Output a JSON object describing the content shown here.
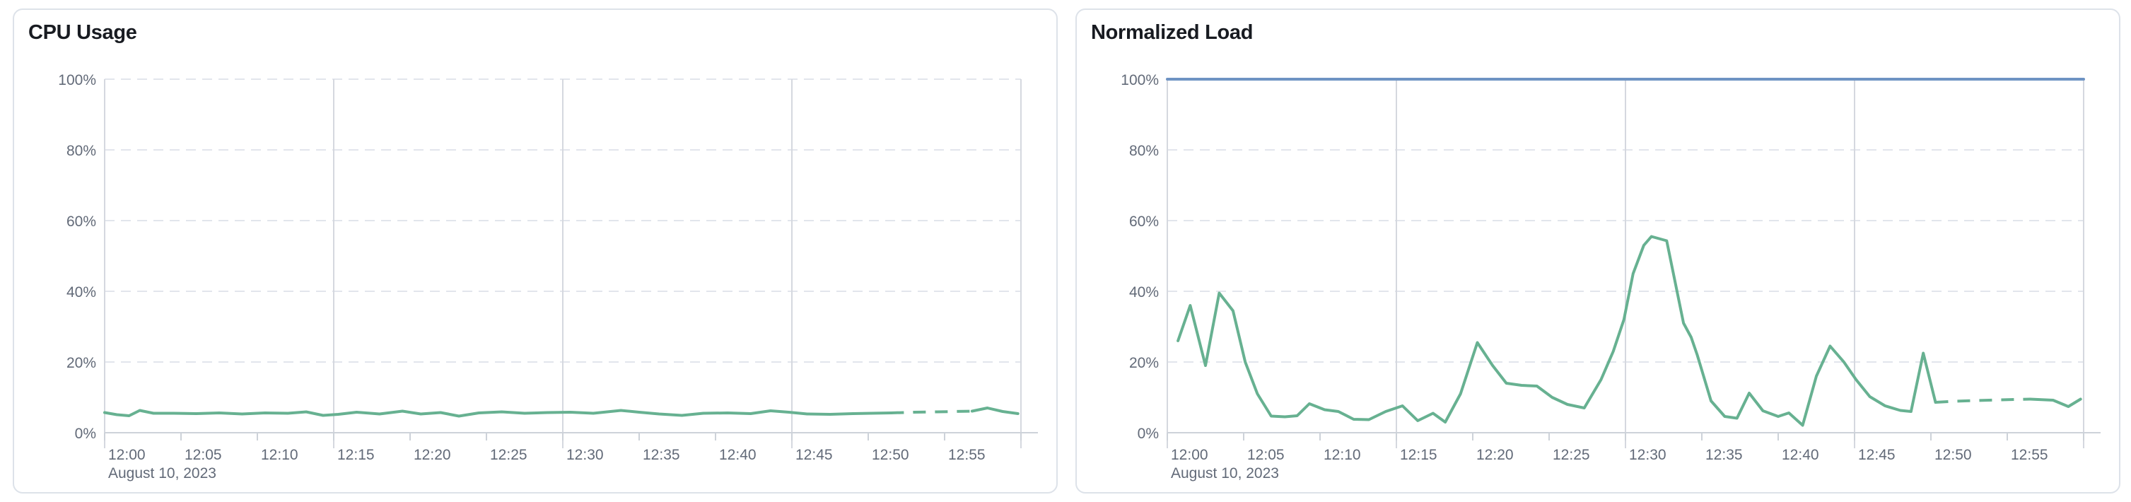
{
  "panels": [
    {
      "title": "CPU Usage",
      "chart_data": {
        "type": "line",
        "title": "CPU Usage",
        "x_axis": {
          "date": "August 10, 2023",
          "start": "12:00",
          "end": "13:00",
          "tick_interval_min": 5,
          "tick_labels": [
            "12:00",
            "12:05",
            "12:10",
            "12:15",
            "12:20",
            "12:25",
            "12:30",
            "12:35",
            "12:40",
            "12:45",
            "12:50",
            "12:55"
          ],
          "major_gridline_minutes": [
            0,
            15,
            30,
            45,
            60
          ]
        },
        "y_axis": {
          "unit": "%",
          "min": 0,
          "max": 100,
          "ticks": [
            0,
            20,
            40,
            60,
            80,
            100
          ],
          "tick_labels": [
            "0%",
            "20%",
            "40%",
            "60%",
            "80%",
            "100%"
          ]
        },
        "legend": "none",
        "series": [
          {
            "name": "cpu-usage",
            "color": "#67b191",
            "unit": "%",
            "segments": [
              {
                "style": "solid",
                "points": [
                  [
                    0,
                    5.7
                  ],
                  [
                    0.8,
                    5.1
                  ],
                  [
                    1.6,
                    4.8
                  ],
                  [
                    2.3,
                    6.3
                  ],
                  [
                    3.2,
                    5.5
                  ],
                  [
                    4.5,
                    5.5
                  ],
                  [
                    6,
                    5.4
                  ],
                  [
                    7.5,
                    5.6
                  ],
                  [
                    9,
                    5.3
                  ],
                  [
                    10.5,
                    5.6
                  ],
                  [
                    12,
                    5.5
                  ],
                  [
                    13.2,
                    5.9
                  ],
                  [
                    14.3,
                    4.9
                  ],
                  [
                    15.3,
                    5.2
                  ],
                  [
                    16.5,
                    5.8
                  ],
                  [
                    18,
                    5.3
                  ],
                  [
                    19.5,
                    6.1
                  ],
                  [
                    20.7,
                    5.3
                  ],
                  [
                    22,
                    5.7
                  ],
                  [
                    23.2,
                    4.7
                  ],
                  [
                    24.5,
                    5.6
                  ],
                  [
                    26,
                    5.9
                  ],
                  [
                    27.5,
                    5.5
                  ],
                  [
                    29,
                    5.7
                  ],
                  [
                    30.5,
                    5.8
                  ],
                  [
                    32,
                    5.5
                  ],
                  [
                    33.8,
                    6.3
                  ],
                  [
                    35,
                    5.8
                  ],
                  [
                    36.3,
                    5.3
                  ],
                  [
                    37.8,
                    4.9
                  ],
                  [
                    39.2,
                    5.5
                  ],
                  [
                    40.8,
                    5.6
                  ],
                  [
                    42.3,
                    5.4
                  ],
                  [
                    43.6,
                    6.2
                  ],
                  [
                    44.8,
                    5.8
                  ],
                  [
                    46,
                    5.3
                  ],
                  [
                    47.5,
                    5.2
                  ],
                  [
                    49,
                    5.4
                  ],
                  [
                    50.2,
                    5.5
                  ],
                  [
                    51.5,
                    5.6
                  ]
                ]
              },
              {
                "style": "dashed",
                "points": [
                  [
                    51.5,
                    5.6
                  ],
                  [
                    53,
                    5.8
                  ],
                  [
                    54.5,
                    5.9
                  ],
                  [
                    56.8,
                    6.1
                  ]
                ]
              },
              {
                "style": "solid",
                "points": [
                  [
                    56.8,
                    6.1
                  ],
                  [
                    57.8,
                    7.0
                  ],
                  [
                    58.8,
                    6.0
                  ],
                  [
                    59.8,
                    5.4
                  ]
                ]
              }
            ]
          }
        ]
      }
    },
    {
      "title": "Normalized Load",
      "chart_data": {
        "type": "line",
        "title": "Normalized Load",
        "x_axis": {
          "date": "August 10, 2023",
          "start": "12:00",
          "end": "13:00",
          "tick_interval_min": 5,
          "tick_labels": [
            "12:00",
            "12:05",
            "12:10",
            "12:15",
            "12:20",
            "12:25",
            "12:30",
            "12:35",
            "12:40",
            "12:45",
            "12:50",
            "12:55"
          ],
          "major_gridline_minutes": [
            0,
            15,
            30,
            45,
            60
          ]
        },
        "y_axis": {
          "unit": "%",
          "min": 0,
          "max": 100,
          "ticks": [
            0,
            20,
            40,
            60,
            80,
            100
          ],
          "tick_labels": [
            "0%",
            "20%",
            "40%",
            "60%",
            "80%",
            "100%"
          ]
        },
        "legend": "none",
        "series": [
          {
            "name": "load-limit",
            "color": "#6e93c3",
            "unit": "%",
            "segments": [
              {
                "style": "solid",
                "points": [
                  [
                    0,
                    100
                  ],
                  [
                    60,
                    100
                  ]
                ]
              }
            ]
          },
          {
            "name": "normalized-load",
            "color": "#67b191",
            "unit": "%",
            "segments": [
              {
                "style": "solid",
                "points": [
                  [
                    0.7,
                    26
                  ],
                  [
                    1.5,
                    36
                  ],
                  [
                    2.5,
                    19
                  ],
                  [
                    3.4,
                    39.5
                  ],
                  [
                    4.3,
                    34.5
                  ],
                  [
                    5.1,
                    20
                  ],
                  [
                    5.9,
                    11
                  ],
                  [
                    6.8,
                    4.7
                  ],
                  [
                    7.7,
                    4.5
                  ],
                  [
                    8.5,
                    4.8
                  ],
                  [
                    9.3,
                    8.2
                  ],
                  [
                    10.3,
                    6.5
                  ],
                  [
                    11.2,
                    6
                  ],
                  [
                    12.2,
                    3.8
                  ],
                  [
                    13.2,
                    3.7
                  ],
                  [
                    14.3,
                    6
                  ],
                  [
                    15.4,
                    7.6
                  ],
                  [
                    16.4,
                    3.4
                  ],
                  [
                    17.4,
                    5.5
                  ],
                  [
                    18.2,
                    3
                  ],
                  [
                    19.2,
                    11
                  ],
                  [
                    20.3,
                    25.5
                  ],
                  [
                    21.3,
                    19
                  ],
                  [
                    22.2,
                    14
                  ],
                  [
                    23.2,
                    13.4
                  ],
                  [
                    24.2,
                    13.2
                  ],
                  [
                    25.2,
                    10
                  ],
                  [
                    26.2,
                    8
                  ],
                  [
                    27.3,
                    7
                  ],
                  [
                    28.4,
                    15
                  ],
                  [
                    29.2,
                    23
                  ],
                  [
                    29.9,
                    32
                  ],
                  [
                    30.5,
                    45
                  ],
                  [
                    31.2,
                    53
                  ],
                  [
                    31.7,
                    55.5
                  ],
                  [
                    32.7,
                    54.3
                  ],
                  [
                    33.8,
                    31
                  ],
                  [
                    34.3,
                    27
                  ],
                  [
                    34.7,
                    22
                  ],
                  [
                    35.6,
                    9
                  ],
                  [
                    36.5,
                    4.6
                  ],
                  [
                    37.3,
                    4.1
                  ],
                  [
                    38.1,
                    11.2
                  ],
                  [
                    39,
                    6.2
                  ],
                  [
                    40,
                    4.6
                  ],
                  [
                    40.7,
                    5.6
                  ],
                  [
                    41.6,
                    2.1
                  ],
                  [
                    42.5,
                    16
                  ],
                  [
                    43.4,
                    24.5
                  ],
                  [
                    44.3,
                    20
                  ],
                  [
                    45.1,
                    15
                  ],
                  [
                    46,
                    10.2
                  ],
                  [
                    47,
                    7.6
                  ],
                  [
                    48,
                    6.3
                  ],
                  [
                    48.7,
                    6
                  ],
                  [
                    49.5,
                    22.5
                  ],
                  [
                    50.3,
                    8.6
                  ]
                ]
              },
              {
                "style": "dashed",
                "points": [
                  [
                    50.3,
                    8.6
                  ],
                  [
                    51.5,
                    8.9
                  ],
                  [
                    53,
                    9.1
                  ],
                  [
                    54.5,
                    9.3
                  ],
                  [
                    56.5,
                    9.5
                  ]
                ]
              },
              {
                "style": "solid",
                "points": [
                  [
                    56.5,
                    9.5
                  ],
                  [
                    58,
                    9.2
                  ],
                  [
                    59,
                    7.4
                  ],
                  [
                    59.8,
                    9.5
                  ]
                ]
              }
            ]
          }
        ]
      }
    }
  ],
  "style": {
    "grid_dash_color": "#e2e5ec",
    "grid_major_vline_color": "#d5d8df",
    "axis_line_color": "#cdd2d9",
    "tick_color": "#cdd2d9",
    "label_color": "#626a78",
    "title_color": "#181b21",
    "panel_border_color": "#dde2e9"
  }
}
